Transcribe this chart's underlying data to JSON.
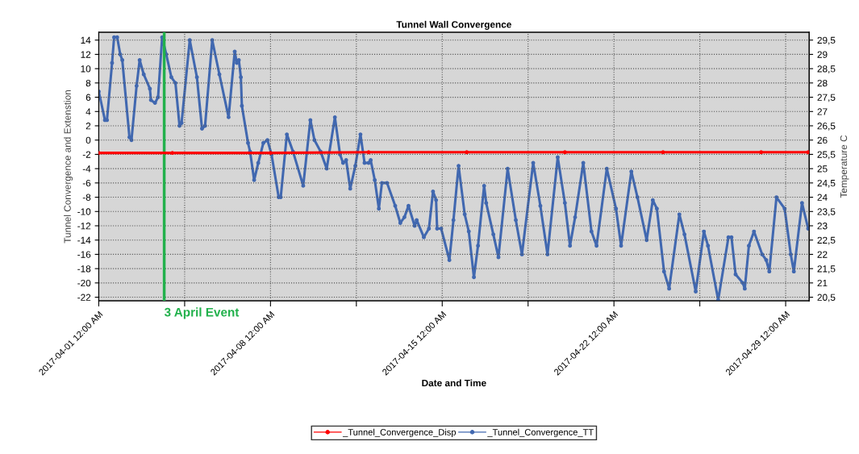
{
  "chart_data": {
    "type": "line",
    "title": "Tunnel Wall Convergence",
    "xlabel": "Date and Time",
    "ylabel": "Tunnel Convergence and Extenstion",
    "y2label": "Temperature C",
    "xlim": [
      "2017-04-01T00:00",
      "2017-04-29T23:00"
    ],
    "xticks": [
      {
        "value": "2017-04-01T00:00",
        "label": "2017-04-01 12:00 AM"
      },
      {
        "value": "2017-04-04T12:00",
        "label": null
      },
      {
        "value": "2017-04-08T00:00",
        "label": "2017-04-08 12:00 AM"
      },
      {
        "value": "2017-04-11T12:00",
        "label": null
      },
      {
        "value": "2017-04-15T00:00",
        "label": "2017-04-15 12:00 AM"
      },
      {
        "value": "2017-04-18T12:00",
        "label": null
      },
      {
        "value": "2017-04-22T00:00",
        "label": "2017-04-22 12:00 AM"
      },
      {
        "value": "2017-04-25T12:00",
        "label": null
      },
      {
        "value": "2017-04-29T00:00",
        "label": "2017-04-29 12:00 AM"
      }
    ],
    "ylim": [
      -22.5,
      15.1
    ],
    "yticks": [
      -22,
      -20,
      -18,
      -16,
      -14,
      -12,
      -10,
      -8,
      -6,
      -4,
      -2,
      0,
      2,
      4,
      6,
      8,
      10,
      12,
      14
    ],
    "y2lim": [
      20.375,
      29.775
    ],
    "y2ticks": [
      {
        "value": 20.5,
        "label": "20,5"
      },
      21,
      {
        "value": 21.5,
        "label": "21,5"
      },
      22,
      {
        "value": 22.5,
        "label": "22,5"
      },
      23,
      {
        "value": 23.5,
        "label": "23,5"
      },
      24,
      {
        "value": 24.5,
        "label": "24,5"
      },
      25,
      {
        "value": 25.5,
        "label": "25,5"
      },
      26,
      {
        "value": 26.5,
        "label": "26,5"
      },
      27,
      {
        "value": 27.5,
        "label": "27,5"
      },
      28,
      {
        "value": 28.5,
        "label": "28,5"
      },
      29,
      {
        "value": 29.5,
        "label": "29,5"
      }
    ],
    "grid": true,
    "legend": "bottom",
    "marker": "circle",
    "line_style": "solid",
    "ref_lines": [
      {
        "axis": "x",
        "value": "2017-04-03T16:00",
        "label": "3 April Event",
        "color": "#22b14c"
      }
    ],
    "series": [
      {
        "name": "_Tunnel_Convergence_Disp",
        "color": "#ff0000",
        "x": [
          "2017-04-01T00:00",
          "2017-04-04T00:00",
          "2017-04-08T00:00",
          "2017-04-12T00:00",
          "2017-04-16T00:00",
          "2017-04-20T00:00",
          "2017-04-24T00:00",
          "2017-04-28T00:00",
          "2017-04-29T22:00"
        ],
        "values": [
          -1.8,
          -1.8,
          -1.8,
          -1.7,
          -1.7,
          -1.7,
          -1.7,
          -1.7,
          -1.7
        ]
      },
      {
        "name": "_Tunnel_Convergence_TT",
        "color": "#4168b0",
        "axis": "y2",
        "x": [
          "2017-04-01T00:00",
          "2017-04-01T06:00",
          "2017-04-01T08:00",
          "2017-04-01T13:00",
          "2017-04-01T15:00",
          "2017-04-01T18:00",
          "2017-04-01T21:00",
          "2017-04-01T23:00",
          "2017-04-02T06:00",
          "2017-04-02T08:00",
          "2017-04-02T13:00",
          "2017-04-02T16:00",
          "2017-04-02T20:00",
          "2017-04-03T02:00",
          "2017-04-03T03:00",
          "2017-04-03T07:00",
          "2017-04-03T10:00",
          "2017-04-03T14:00",
          "2017-04-03T18:00",
          "2017-04-03T23:00",
          "2017-04-04T03:00",
          "2017-04-04T07:00",
          "2017-04-04T09:00",
          "2017-04-04T17:00",
          "2017-04-05T00:00",
          "2017-04-05T05:00",
          "2017-04-05T08:00",
          "2017-04-05T15:00",
          "2017-04-05T22:00",
          "2017-04-06T07:00",
          "2017-04-06T13:00",
          "2017-04-06T15:00",
          "2017-04-06T17:00",
          "2017-04-06T19:00",
          "2017-04-06T20:00",
          "2017-04-07T02:00",
          "2017-04-07T04:00",
          "2017-04-07T08:00",
          "2017-04-07T12:00",
          "2017-04-07T17:00",
          "2017-04-07T21:00",
          "2017-04-08T01:00",
          "2017-04-08T08:00",
          "2017-04-08T10:00",
          "2017-04-08T16:00",
          "2017-04-08T22:00",
          "2017-04-09T08:00",
          "2017-04-09T15:00",
          "2017-04-09T19:00",
          "2017-04-10T01:00",
          "2017-04-10T07:00",
          "2017-04-10T15:00",
          "2017-04-10T20:00",
          "2017-04-10T23:00",
          "2017-04-11T02:00",
          "2017-04-11T06:00",
          "2017-04-11T11:00",
          "2017-04-11T16:00",
          "2017-04-11T20:00",
          "2017-04-12T00:00",
          "2017-04-12T02:00",
          "2017-04-12T06:00",
          "2017-04-12T10:00",
          "2017-04-12T13:00",
          "2017-04-12T18:00",
          "2017-04-13T02:00",
          "2017-04-13T07:00",
          "2017-04-13T11:00",
          "2017-04-13T15:00",
          "2017-04-13T21:00",
          "2017-04-13T23:00",
          "2017-04-14T06:00",
          "2017-04-14T11:00",
          "2017-04-14T15:00",
          "2017-04-14T18:00",
          "2017-04-14T19:00",
          "2017-04-14T23:00",
          "2017-04-15T07:00",
          "2017-04-15T11:00",
          "2017-04-15T16:00",
          "2017-04-15T22:00",
          "2017-04-16T02:00",
          "2017-04-16T07:00",
          "2017-04-16T11:00",
          "2017-04-16T17:00",
          "2017-04-16T19:00",
          "2017-04-17T02:00",
          "2017-04-17T07:00",
          "2017-04-17T16:00",
          "2017-04-18T00:00",
          "2017-04-18T06:00",
          "2017-04-18T17:00",
          "2017-04-19T00:00",
          "2017-04-19T07:00",
          "2017-04-19T17:00",
          "2017-04-20T00:00",
          "2017-04-20T05:00",
          "2017-04-20T10:00",
          "2017-04-20T18:00",
          "2017-04-21T02:00",
          "2017-04-21T07:00",
          "2017-04-21T17:00",
          "2017-04-22T02:00",
          "2017-04-22T07:00",
          "2017-04-22T17:00",
          "2017-04-22T23:00",
          "2017-04-23T08:00",
          "2017-04-23T14:00",
          "2017-04-23T18:00",
          "2017-04-24T01:00",
          "2017-04-24T06:00",
          "2017-04-24T16:00",
          "2017-04-24T21:00",
          "2017-04-25T08:00",
          "2017-04-25T16:00",
          "2017-04-25T20:00",
          "2017-04-26T06:00",
          "2017-04-26T16:00",
          "2017-04-26T19:00",
          "2017-04-26T23:00",
          "2017-04-27T06:00",
          "2017-04-27T08:00",
          "2017-04-27T12:00",
          "2017-04-27T17:00",
          "2017-04-28T01:00",
          "2017-04-28T05:00",
          "2017-04-28T08:00",
          "2017-04-28T15:00",
          "2017-04-28T23:00",
          "2017-04-29T05:00",
          "2017-04-29T08:00",
          "2017-04-29T16:00",
          "2017-04-29T22:00"
        ],
        "values": [
          27.7,
          26.7,
          26.7,
          28.7,
          29.6,
          29.6,
          29.0,
          28.8,
          26.1,
          26.0,
          27.9,
          28.8,
          28.3,
          27.8,
          27.4,
          27.3,
          27.5,
          29.6,
          29.0,
          28.2,
          28.0,
          26.5,
          26.6,
          29.5,
          28.2,
          26.4,
          26.5,
          29.5,
          28.3,
          26.8,
          29.1,
          28.7,
          28.8,
          28.2,
          27.2,
          25.9,
          25.6,
          24.6,
          25.2,
          25.9,
          26.0,
          25.5,
          24.0,
          24.0,
          26.2,
          25.6,
          24.4,
          26.7,
          26.0,
          25.6,
          25.0,
          26.8,
          25.5,
          25.2,
          25.3,
          24.3,
          25.1,
          26.2,
          25.2,
          25.2,
          25.3,
          24.6,
          23.6,
          24.5,
          24.5,
          23.7,
          23.1,
          23.3,
          23.7,
          23.0,
          23.2,
          22.6,
          22.9,
          24.2,
          23.9,
          22.9,
          22.9,
          21.8,
          23.2,
          25.1,
          23.4,
          22.8,
          21.2,
          22.3,
          24.4,
          23.8,
          22.7,
          21.9,
          25.0,
          23.2,
          22.0,
          25.2,
          23.7,
          22.0,
          25.4,
          23.8,
          22.3,
          23.3,
          25.2,
          22.8,
          22.3,
          25.0,
          23.6,
          22.3,
          24.9,
          24.0,
          22.5,
          23.9,
          23.6,
          21.4,
          20.8,
          23.4,
          22.7,
          20.7,
          22.8,
          22.3,
          20.4,
          22.6,
          22.6,
          21.3,
          21.0,
          20.8,
          22.3,
          22.8,
          22.0,
          21.8,
          21.4,
          24.0,
          23.6,
          22.0,
          21.4,
          23.8,
          22.9
        ]
      }
    ]
  }
}
